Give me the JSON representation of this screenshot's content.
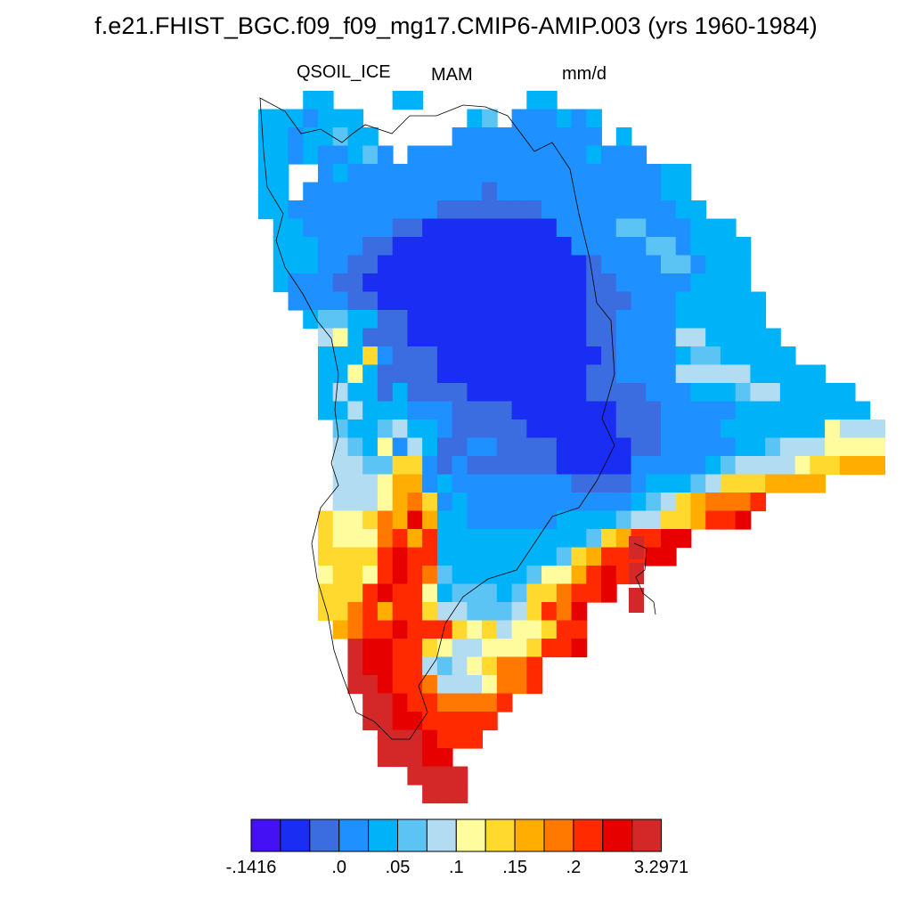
{
  "title": "f.e21.FHIST_BGC.f09_f09_mg17.CMIP6-AMIP.003 (yrs 1960-1984)",
  "subtitle": {
    "variable": "QSOIL_ICE",
    "season": "MAM",
    "units": "mm/d"
  },
  "colorbar": {
    "colors": [
      "#4410f4",
      "#1a2df2",
      "#3b6de0",
      "#1e90ff",
      "#00b2f8",
      "#5cc4f4",
      "#b2dcf2",
      "#fffc9e",
      "#ffd92e",
      "#ffae00",
      "#ff7800",
      "#ff2a00",
      "#e60000",
      "#d42828"
    ],
    "labels": [
      {
        "text": "-.1416",
        "boundary": 0
      },
      {
        "text": ".0",
        "boundary": 3
      },
      {
        "text": ".05",
        "boundary": 5
      },
      {
        "text": ".1",
        "boundary": 7
      },
      {
        "text": ".15",
        "boundary": 9
      },
      {
        "text": ".2",
        "boundary": 11
      },
      {
        "text": "3.2971",
        "boundary": 14
      }
    ]
  }
}
